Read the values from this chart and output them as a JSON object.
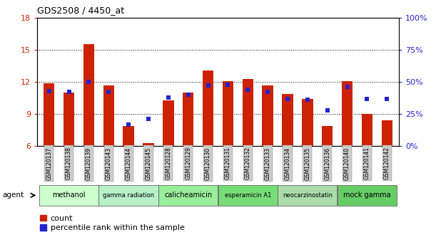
{
  "title": "GDS2508 / 4450_at",
  "samples": [
    "GSM120137",
    "GSM120138",
    "GSM120139",
    "GSM120143",
    "GSM120144",
    "GSM120145",
    "GSM120128",
    "GSM120129",
    "GSM120130",
    "GSM120131",
    "GSM120132",
    "GSM120133",
    "GSM120134",
    "GSM120135",
    "GSM120136",
    "GSM120140",
    "GSM120141",
    "GSM120142"
  ],
  "count_values": [
    11.9,
    11.0,
    15.5,
    11.7,
    7.9,
    6.3,
    10.3,
    11.0,
    13.1,
    12.1,
    12.3,
    11.7,
    10.9,
    10.4,
    7.9,
    12.1,
    9.0,
    8.4
  ],
  "percentile_values": [
    43,
    42,
    50,
    42,
    17,
    21,
    38,
    40,
    47,
    48,
    44,
    42,
    37,
    36,
    28,
    46,
    37,
    37
  ],
  "groups": [
    {
      "label": "methanol",
      "start": 0,
      "end": 3,
      "color": "#ccffcc"
    },
    {
      "label": "gamma radiation",
      "start": 3,
      "end": 6,
      "color": "#b8f0c8"
    },
    {
      "label": "calicheamicin",
      "start": 6,
      "end": 9,
      "color": "#99ee99"
    },
    {
      "label": "esperamicin A1",
      "start": 9,
      "end": 12,
      "color": "#77dd77"
    },
    {
      "label": "neocarzinostatin",
      "start": 12,
      "end": 15,
      "color": "#aaddaa"
    },
    {
      "label": "mock gamma",
      "start": 15,
      "end": 18,
      "color": "#66cc66"
    }
  ],
  "bar_color": "#cc2200",
  "dot_color": "#2222cc",
  "ylim_left": [
    6,
    18
  ],
  "ylim_right": [
    0,
    100
  ],
  "yticks_left": [
    6,
    9,
    12,
    15,
    18
  ],
  "yticks_right": [
    0,
    25,
    50,
    75,
    100
  ],
  "left_tick_color": "#cc2200",
  "right_tick_color": "#2222cc",
  "bar_width": 0.55,
  "agent_label": "agent",
  "legend_count_label": "count",
  "legend_pct_label": "percentile rank within the sample"
}
